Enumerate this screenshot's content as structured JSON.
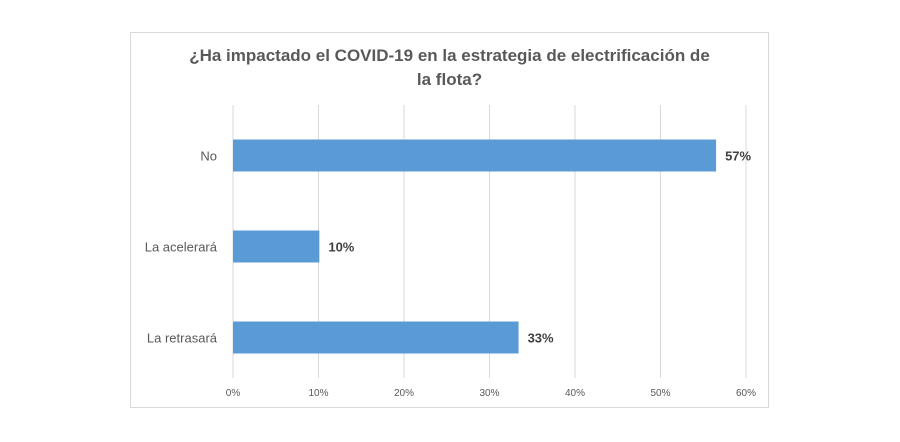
{
  "chart_data": {
    "type": "bar",
    "orientation": "horizontal",
    "title": [
      "¿Ha impactado el COVID-19 en la estrategia de electrificación de",
      "la flota?"
    ],
    "categories": [
      "No",
      "La acelerará",
      "La retrasará"
    ],
    "values": [
      56.5,
      10.1,
      33.4
    ],
    "data_labels": [
      "57%",
      "10%",
      "33%"
    ],
    "xlim": [
      0,
      60
    ],
    "x_ticks": [
      "0%",
      "10%",
      "20%",
      "30%",
      "40%",
      "50%",
      "60%"
    ],
    "grid": "vertical",
    "bar_color": "#5b9bd5",
    "xlabel": "",
    "ylabel": ""
  }
}
